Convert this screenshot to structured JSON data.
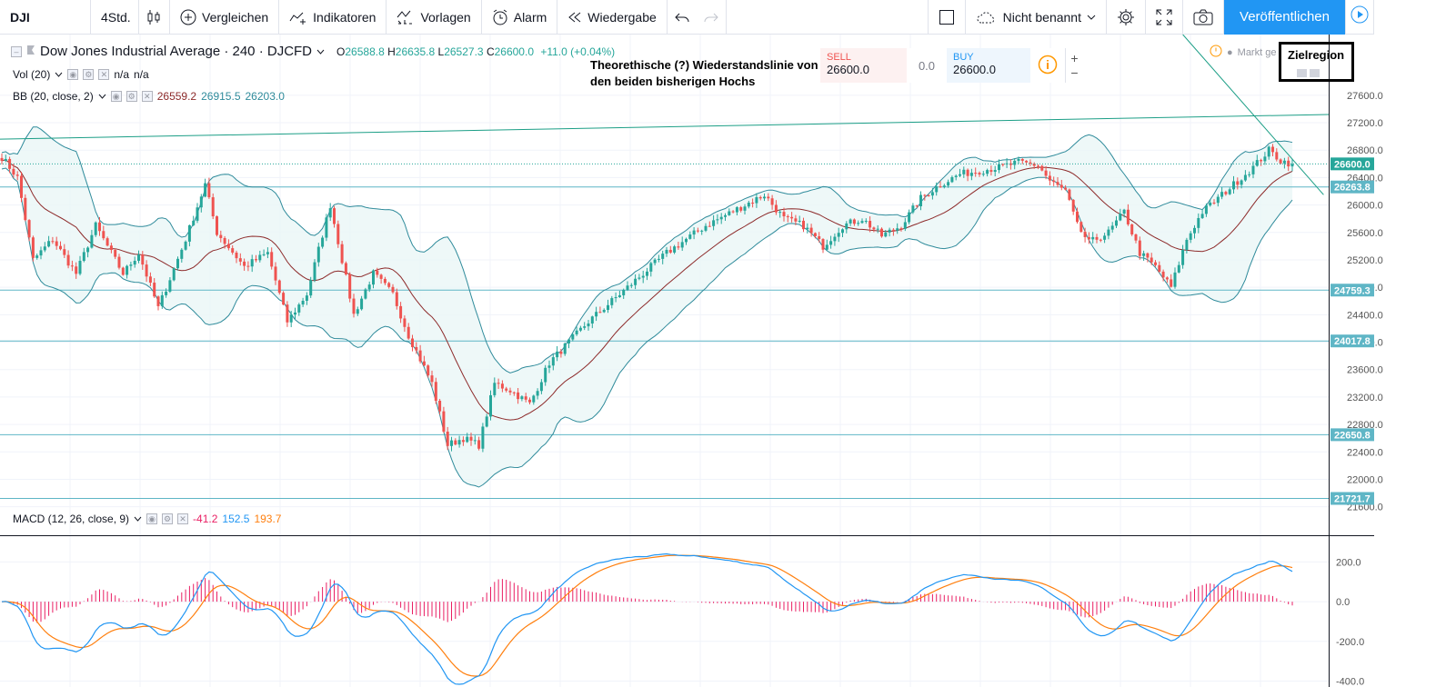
{
  "toolbar": {
    "symbol": "DJI",
    "interval": "4Std.",
    "compare": "Vergleichen",
    "indicators": "Indikatoren",
    "templates": "Vorlagen",
    "alert": "Alarm",
    "replay": "Wiedergabe",
    "layout_name": "Nicht benannt",
    "publish": "Veröffentlichen"
  },
  "legend": {
    "title": "Dow Jones Industrial Average · 240 · DJCFD",
    "open_label": "O",
    "open": "26588.8",
    "high_label": "H",
    "high": "26635.8",
    "low_label": "L",
    "low": "26527.3",
    "close_label": "C",
    "close": "26600.0",
    "change": "+11.0 (+0.04%)",
    "vol_label": "Vol (20)",
    "vol_v1": "n/a",
    "vol_v2": "n/a",
    "bb_label": "BB (20, close, 2)",
    "bb_mid": "26559.2",
    "bb_upper": "26915.5",
    "bb_lower": "26203.0",
    "macd_label": "MACD (12, 26, close, 9)",
    "macd_hist": "-41.2",
    "macd_line": "152.5",
    "macd_signal": "193.7"
  },
  "trade": {
    "sell_label": "SELL",
    "sell_price": "26600.0",
    "spread": "0.0",
    "buy_label": "BUY",
    "buy_price": "26600.0",
    "market_status": "Markt ge"
  },
  "annotations": {
    "resistance_line1": "Theorethische (?) Wiederstandslinie von",
    "resistance_line2": "den beiden bisherigen Hochs",
    "target": "Zielregion"
  },
  "colors": {
    "bull": "#26a69a",
    "bear": "#ef5350",
    "bb_band": "#2f8b9b",
    "bb_mid": "#8d2a2a",
    "bb_fill": "#eaf6f6",
    "hline": "#5fb6c6",
    "trendline": "#1b9e86",
    "macd": "#2196f3",
    "signal": "#ff7f0e",
    "hist": "#e91e63",
    "price_tag": "#26a69a"
  },
  "chart_data": [
    {
      "type": "candlestick",
      "title": "Dow Jones Industrial Average · 240 · DJCFD",
      "ylim": [
        21450,
        27850
      ],
      "y_ticks": [
        "21600.0",
        "22000.0",
        "22400.0",
        "22800.0",
        "23200.0",
        "23600.0",
        "24000.0",
        "24400.0",
        "24800.0",
        "25200.0",
        "25600.0",
        "26000.0",
        "26400.0",
        "26800.0",
        "27200.0",
        "27600.0"
      ],
      "price_path": [
        [
          0,
          26700
        ],
        [
          4,
          26400
        ],
        [
          8,
          25200
        ],
        [
          13,
          25500
        ],
        [
          19,
          25000
        ],
        [
          24,
          25700
        ],
        [
          31,
          25000
        ],
        [
          35,
          25300
        ],
        [
          40,
          24500
        ],
        [
          47,
          25500
        ],
        [
          52,
          26300
        ],
        [
          55,
          25600
        ],
        [
          62,
          25100
        ],
        [
          68,
          25300
        ],
        [
          73,
          24300
        ],
        [
          78,
          24700
        ],
        [
          84,
          26000
        ],
        [
          90,
          24400
        ],
        [
          95,
          25000
        ],
        [
          100,
          24700
        ],
        [
          104,
          24100
        ],
        [
          110,
          23400
        ],
        [
          114,
          22500
        ],
        [
          118,
          22600
        ],
        [
          122,
          22500
        ],
        [
          126,
          23400
        ],
        [
          130,
          23300
        ],
        [
          135,
          23100
        ],
        [
          140,
          23700
        ],
        [
          150,
          24300
        ],
        [
          160,
          24800
        ],
        [
          170,
          25300
        ],
        [
          180,
          25700
        ],
        [
          190,
          26000
        ],
        [
          195,
          26150
        ],
        [
          200,
          25800
        ],
        [
          205,
          25700
        ],
        [
          210,
          25400
        ],
        [
          215,
          25700
        ],
        [
          220,
          25800
        ],
        [
          225,
          25550
        ],
        [
          230,
          25700
        ],
        [
          235,
          26100
        ],
        [
          240,
          26300
        ],
        [
          245,
          26450
        ],
        [
          250,
          26500
        ],
        [
          255,
          26550
        ],
        [
          260,
          26620
        ],
        [
          265,
          26580
        ],
        [
          268,
          26350
        ],
        [
          272,
          26200
        ],
        [
          275,
          25700
        ],
        [
          278,
          25450
        ],
        [
          283,
          25600
        ],
        [
          287,
          25900
        ],
        [
          291,
          25300
        ],
        [
          295,
          25100
        ],
        [
          299,
          24800
        ],
        [
          303,
          25500
        ],
        [
          307,
          25900
        ],
        [
          312,
          26150
        ],
        [
          316,
          26350
        ],
        [
          320,
          26550
        ],
        [
          324,
          26800
        ],
        [
          327,
          26650
        ],
        [
          330,
          26600
        ]
      ],
      "bollinger": {
        "period": 20,
        "stdev": 2,
        "mid_last": 26559.2,
        "upper_last": 26915.5,
        "lower_last": 26203.0
      },
      "horizontal_levels": [
        26263.8,
        24759.3,
        24017.8,
        22650.8,
        21721.7
      ],
      "level_labels": [
        "26263.8",
        "24759.3",
        "24017.8",
        "22650.8",
        "21721.7"
      ],
      "last_price": 26600.0,
      "last_price_label": "26600.0"
    },
    {
      "type": "macd",
      "title": "MACD (12, 26, close, 9)",
      "ylim": [
        -430,
        330
      ],
      "y_ticks": [
        "200.0",
        "0.0",
        "-200.0",
        "-400.0"
      ],
      "last": {
        "histogram": -41.2,
        "macd": 152.5,
        "signal": 193.7
      }
    }
  ]
}
